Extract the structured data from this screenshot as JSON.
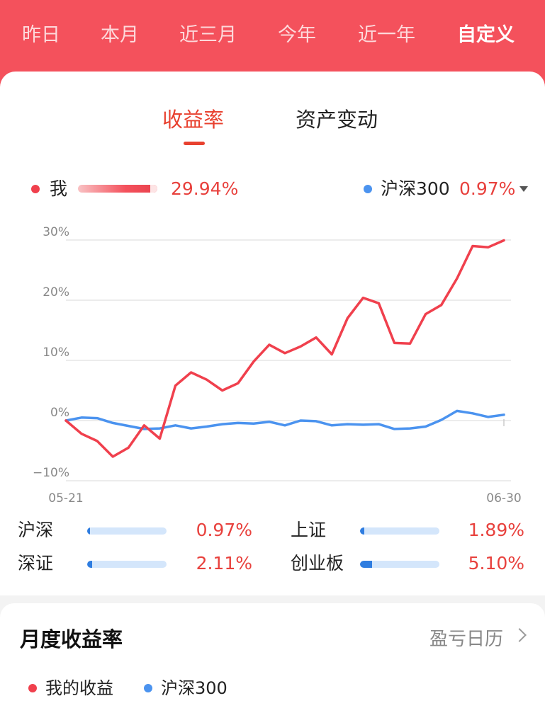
{
  "header": {
    "tabs": [
      {
        "label": "昨日"
      },
      {
        "label": "本月"
      },
      {
        "label": "近三月"
      },
      {
        "label": "今年"
      },
      {
        "label": "近一年"
      },
      {
        "label": "自定义"
      }
    ],
    "active_tab": "自定义",
    "bg_color": "#f4515c"
  },
  "subtabs": {
    "returns": "收益率",
    "asset_change": "资产变动",
    "active": "收益率"
  },
  "legend": {
    "me_label": "我",
    "me_value": "29.94%",
    "bench_label": "沪深300",
    "bench_value": "0.97%",
    "bench_dropdown_icon": "caret-down-icon"
  },
  "chart_data": {
    "type": "line",
    "y_ticks": [
      "30%",
      "20%",
      "10%",
      "0%",
      "−10%"
    ],
    "ylim": [
      -10,
      30
    ],
    "x_start_label": "05-21",
    "x_end_label": "06-30",
    "series": [
      {
        "name": "我",
        "color": "#f0404d",
        "values": [
          0,
          -2.2,
          -3.4,
          -6,
          -4.5,
          -0.8,
          -3,
          5.8,
          8,
          6.8,
          5,
          6.2,
          9.8,
          12.6,
          11.2,
          12.3,
          13.8,
          11,
          17,
          20.4,
          19.5,
          12.9,
          12.8,
          17.7,
          19.2,
          23.6,
          29,
          28.8,
          29.94
        ]
      },
      {
        "name": "沪深300",
        "color": "#4b93ef",
        "values": [
          0,
          0.5,
          0.4,
          -0.4,
          -0.9,
          -1.4,
          -1.3,
          -0.8,
          -1.3,
          -1,
          -0.6,
          -0.4,
          -0.5,
          -0.2,
          -0.8,
          0,
          -0.1,
          -0.8,
          -0.6,
          -0.7,
          -0.6,
          -1.4,
          -1.3,
          -1,
          0.1,
          1.6,
          1.2,
          0.6,
          0.97
        ]
      }
    ]
  },
  "comparison": [
    {
      "label": "沪深",
      "value": "0.97%",
      "fill": 0.02
    },
    {
      "label": "上证",
      "value": "1.89%",
      "fill": 0.05
    },
    {
      "label": "深证",
      "value": "2.11%",
      "fill": 0.06
    },
    {
      "label": "创业板",
      "value": "5.10%",
      "fill": 0.15
    }
  ],
  "monthly": {
    "title": "月度收益率",
    "calendar_link": "盈亏日历",
    "legend_me": "我的收益",
    "legend_bench": "沪深300"
  },
  "colors": {
    "accent_red": "#e8413d",
    "line_red": "#f0404d",
    "line_blue": "#4b93ef"
  }
}
